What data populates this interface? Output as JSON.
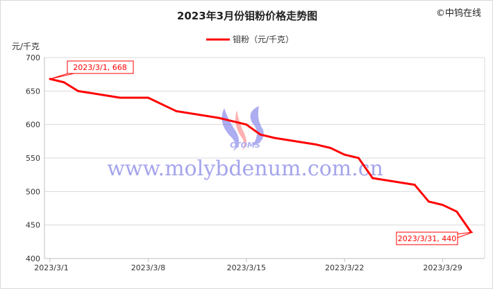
{
  "copyright": "©中钨在线",
  "watermark": {
    "logo_text": "CTOMS",
    "url": "www.molybdenum.com.cn"
  },
  "chart_data": {
    "type": "line",
    "title": "2023年3月份钼粉价格走势图",
    "ylabel": "元/千克",
    "xlabel": "",
    "ylim": [
      400,
      700
    ],
    "yticks": [
      400,
      450,
      500,
      550,
      600,
      650,
      700
    ],
    "xticks": [
      "2023/3/1",
      "2023/3/8",
      "2023/3/15",
      "2023/3/22",
      "2023/3/29"
    ],
    "grid": true,
    "legend": "top-center",
    "series": [
      {
        "name": "钼粉（元/千克）",
        "color": "#ff0000",
        "points": [
          [
            "2023/3/1",
            668
          ],
          [
            "2023/3/2",
            663
          ],
          [
            "2023/3/3",
            650
          ],
          [
            "2023/3/6",
            640
          ],
          [
            "2023/3/7",
            640
          ],
          [
            "2023/3/8",
            640
          ],
          [
            "2023/3/9",
            630
          ],
          [
            "2023/3/10",
            620
          ],
          [
            "2023/3/13",
            610
          ],
          [
            "2023/3/14",
            605
          ],
          [
            "2023/3/15",
            600
          ],
          [
            "2023/3/16",
            585
          ],
          [
            "2023/3/17",
            580
          ],
          [
            "2023/3/20",
            570
          ],
          [
            "2023/3/21",
            565
          ],
          [
            "2023/3/22",
            555
          ],
          [
            "2023/3/23",
            550
          ],
          [
            "2023/3/24",
            520
          ],
          [
            "2023/3/27",
            510
          ],
          [
            "2023/3/28",
            485
          ],
          [
            "2023/3/29",
            480
          ],
          [
            "2023/3/30",
            470
          ],
          [
            "2023/3/31",
            440
          ]
        ]
      }
    ],
    "annotations": [
      "2023/3/1, 668",
      "2023/3/31, 440"
    ]
  }
}
